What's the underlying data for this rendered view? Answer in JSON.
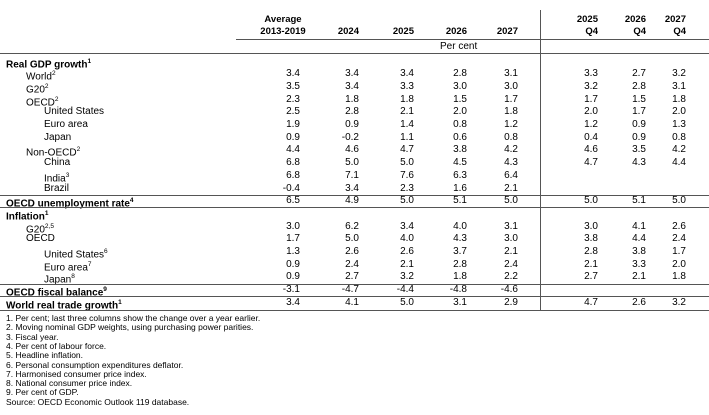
{
  "header": {
    "columns": [
      [
        "Average",
        "2013-2019"
      ],
      [
        "2024"
      ],
      [
        "2025"
      ],
      [
        "2026"
      ],
      [
        "2027"
      ],
      [
        "2025",
        "Q4"
      ],
      [
        "2026",
        "Q4"
      ],
      [
        "2027",
        "Q4"
      ]
    ],
    "unit": "Per cent"
  },
  "table": {
    "rows": [
      {
        "label": "Real GDP growth",
        "note": "1",
        "level": 0
      },
      {
        "label": "World",
        "note": "2",
        "level": 1,
        "values": [
          "3.4",
          "3.4",
          "3.4",
          "2.8",
          "3.1",
          "3.3",
          "2.7",
          "3.2"
        ]
      },
      {
        "label": "G20",
        "note": "2",
        "level": 1,
        "values": [
          "3.5",
          "3.4",
          "3.3",
          "3.0",
          "3.0",
          "3.2",
          "2.8",
          "3.1"
        ]
      },
      {
        "label": "OECD",
        "note": "2",
        "level": 1,
        "values": [
          "2.3",
          "1.8",
          "1.8",
          "1.5",
          "1.7",
          "1.7",
          "1.5",
          "1.8"
        ]
      },
      {
        "label": "United States",
        "level": 2,
        "values": [
          "2.5",
          "2.8",
          "2.1",
          "2.0",
          "1.8",
          "2.0",
          "1.7",
          "2.0"
        ]
      },
      {
        "label": "Euro area",
        "level": 2,
        "values": [
          "1.9",
          "0.9",
          "1.4",
          "0.8",
          "1.2",
          "1.2",
          "0.9",
          "1.3"
        ]
      },
      {
        "label": "Japan",
        "level": 2,
        "values": [
          "0.9",
          "-0.2",
          "1.1",
          "0.6",
          "0.8",
          "0.4",
          "0.9",
          "0.8"
        ]
      },
      {
        "label": "Non-OECD",
        "note": "2",
        "level": 1,
        "values": [
          "4.4",
          "4.6",
          "4.7",
          "3.8",
          "4.2",
          "4.6",
          "3.5",
          "4.2"
        ]
      },
      {
        "label": "China",
        "level": 2,
        "values": [
          "6.8",
          "5.0",
          "5.0",
          "4.5",
          "4.3",
          "4.7",
          "4.3",
          "4.4"
        ]
      },
      {
        "label": "India",
        "note": "3",
        "level": 2,
        "values": [
          "6.8",
          "7.1",
          "7.6",
          "6.3",
          "6.4",
          null,
          null,
          null
        ]
      },
      {
        "label": "Brazil",
        "level": 2,
        "values": [
          "-0.4",
          "3.4",
          "2.3",
          "1.6",
          "2.1",
          null,
          null,
          null
        ]
      },
      {
        "label": "OECD unemployment rate",
        "note": "4",
        "level": 0,
        "values": [
          "6.5",
          "4.9",
          "5.0",
          "5.1",
          "5.0",
          "5.0",
          "5.1",
          "5.0"
        ]
      },
      {
        "label": "Inflation",
        "note": "1",
        "level": 0
      },
      {
        "label": "G20",
        "note": "2,5",
        "level": 1,
        "values": [
          "3.0",
          "6.2",
          "3.4",
          "4.0",
          "3.1",
          "3.0",
          "4.1",
          "2.6"
        ]
      },
      {
        "label": "OECD",
        "level": 1,
        "values": [
          "1.7",
          "5.0",
          "4.0",
          "4.3",
          "3.0",
          "3.8",
          "4.4",
          "2.4"
        ]
      },
      {
        "label": "United States",
        "note": "6",
        "level": 2,
        "values": [
          "1.3",
          "2.6",
          "2.6",
          "3.7",
          "2.1",
          "2.8",
          "3.8",
          "1.7"
        ]
      },
      {
        "label": "Euro area",
        "note": "7",
        "level": 2,
        "values": [
          "0.9",
          "2.4",
          "2.1",
          "2.8",
          "2.4",
          "2.1",
          "3.3",
          "2.0"
        ]
      },
      {
        "label": "Japan",
        "note": "8",
        "level": 2,
        "values": [
          "0.9",
          "2.7",
          "3.2",
          "1.8",
          "2.2",
          "2.7",
          "2.1",
          "1.8"
        ]
      },
      {
        "label": "OECD fiscal balance",
        "note": "9",
        "level": 0,
        "values": [
          "-3.1",
          "-4.7",
          "-4.4",
          "-4.8",
          "-4.6",
          null,
          null,
          null
        ]
      },
      {
        "label": "World real trade growth",
        "note": "1",
        "level": 0,
        "values": [
          "3.4",
          "4.1",
          "5.0",
          "3.1",
          "2.9",
          "4.7",
          "2.6",
          "3.2"
        ]
      }
    ]
  },
  "footnotes": [
    "1. Per cent; last three columns show the change over a year earlier.",
    "2. Moving nominal GDP weights, using purchasing power parities.",
    "3. Fiscal year.",
    "4. Per cent of labour force.",
    "5. Headline inflation.",
    "6. Personal consumption expenditures deflator.",
    "7. Harmonised consumer price index.",
    "8. National consumer price index.",
    "9. Per cent of GDP.",
    "Source: OECD Economic Outlook 119 database."
  ]
}
